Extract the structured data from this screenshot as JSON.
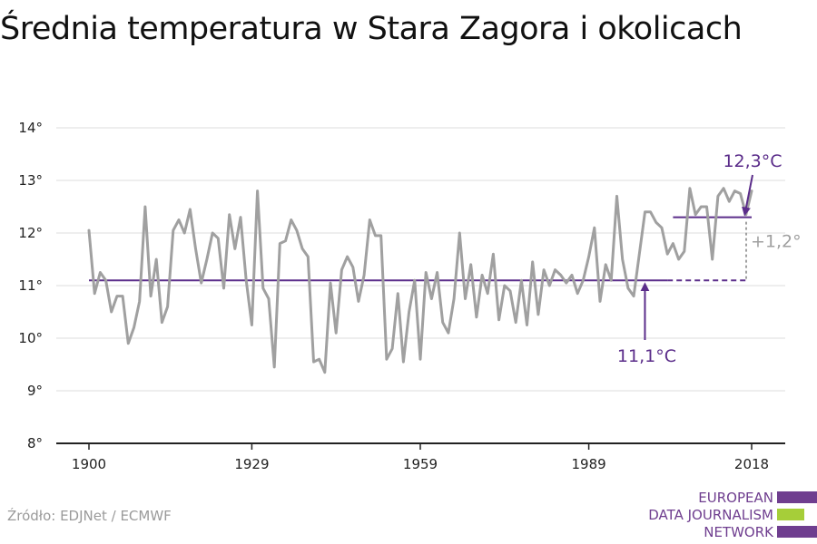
{
  "title": "Średnia temperatura w Stara Zagora i okolicach",
  "source": "Źródło: EDJNet / ECMWF",
  "logo": {
    "lines": [
      "EUROPEAN",
      "DATA JOURNALISM",
      "NETWORK"
    ],
    "colors": {
      "purple": "#6f3e8f",
      "green": "#a6ce39"
    }
  },
  "colors": {
    "series": "#a0a0a0",
    "reference": "#5b2d8a",
    "grid": "#dcdcdc",
    "axis": "#222222",
    "diff": "#a0a0a0"
  },
  "chart_data": {
    "type": "line",
    "title": "Średnia temperatura w Stara Zagora i okolicach",
    "xlabel": "",
    "ylabel": "",
    "xlim": [
      1900,
      2018
    ],
    "ylim": [
      8,
      14
    ],
    "x_ticks": [
      1900,
      1929,
      1959,
      1989,
      2018
    ],
    "y_ticks": [
      8,
      9,
      10,
      11,
      12,
      13,
      14
    ],
    "y_tick_labels": [
      "8°",
      "9°",
      "10°",
      "11°",
      "12°",
      "13°",
      "14°"
    ],
    "grid": true,
    "series": [
      {
        "x_start": 1900,
        "values": [
          12.05,
          10.85,
          11.25,
          11.1,
          10.5,
          10.8,
          10.8,
          9.9,
          10.2,
          10.7,
          12.5,
          10.8,
          11.5,
          10.3,
          10.6,
          12.05,
          12.25,
          12.0,
          12.45,
          11.7,
          11.05,
          11.5,
          12.0,
          11.9,
          10.95,
          12.35,
          11.7,
          12.3,
          11.1,
          10.25,
          12.8,
          10.95,
          10.75,
          9.45,
          11.8,
          11.85,
          12.25,
          12.05,
          11.7,
          11.55,
          9.55,
          9.6,
          9.35,
          11.05,
          10.1,
          11.3,
          11.55,
          11.35,
          10.7,
          11.2,
          12.25,
          11.95,
          11.95,
          9.6,
          9.8,
          10.85,
          9.55,
          10.5,
          11.1,
          9.6,
          11.25,
          10.75,
          11.25,
          10.3,
          10.1,
          10.75,
          12.0,
          10.75,
          11.4,
          10.4,
          11.2,
          10.85,
          11.6,
          10.35,
          11.0,
          10.9,
          10.3,
          11.1,
          10.25,
          11.45,
          10.45,
          11.3,
          11.0,
          11.3,
          11.2,
          11.05,
          11.2,
          10.85,
          11.1,
          11.55,
          12.1,
          10.7,
          11.4,
          11.1,
          12.7,
          11.5,
          10.95,
          10.8,
          11.6,
          12.4,
          12.4,
          12.2,
          12.1,
          11.6,
          11.8,
          11.5,
          11.65,
          12.85,
          12.35,
          12.5,
          12.5,
          11.5,
          12.7,
          12.85,
          12.6,
          12.8,
          12.75,
          12.35,
          12.8
        ]
      }
    ],
    "reference_line": {
      "value": 11.1,
      "solid_from": 1900,
      "solid_to": 2003,
      "dashed_to": 2018,
      "label": "11,1°C",
      "label_year": 1999
    },
    "recent_line": {
      "value": 12.3,
      "from": 2004,
      "to": 2018,
      "label": "12,3°C"
    },
    "difference_label": "+1,2°"
  }
}
